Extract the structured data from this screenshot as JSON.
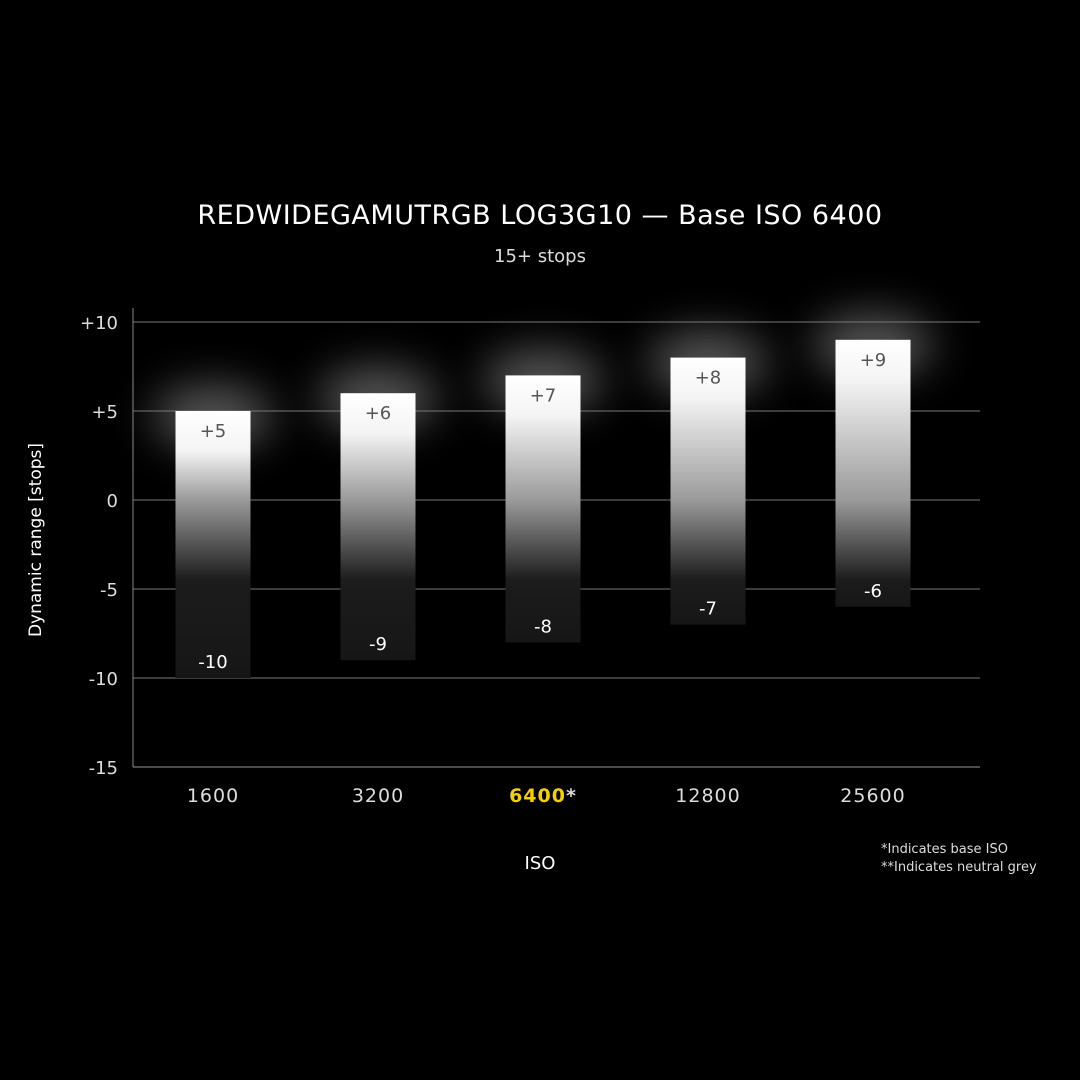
{
  "chart_data": {
    "type": "bar",
    "title": "REDWIDEGAMUTRGB LOG3G10 — Base ISO 6400",
    "subtitle": "15+ stops",
    "xlabel": "ISO",
    "ylabel": "Dynamic range [stops]",
    "ylim": [
      -15,
      10
    ],
    "yticks": [
      "+10",
      "+5",
      "0",
      "-5",
      "-10",
      "-15"
    ],
    "ytick_values": [
      10,
      5,
      0,
      -5,
      -10,
      -15
    ],
    "grid": true,
    "categories": [
      "1600",
      "3200",
      "6400*",
      "12800",
      "25600"
    ],
    "highlight_category": "6400*",
    "highlight_color": "#f5d000",
    "series": [
      {
        "name": "highlight",
        "values": [
          5,
          6,
          7,
          8,
          9
        ],
        "labels": [
          "+5",
          "+6",
          "+7",
          "+8",
          "+9"
        ]
      },
      {
        "name": "shadow",
        "values": [
          -10,
          -9,
          -8,
          -7,
          -6
        ],
        "labels": [
          "-10",
          "-9",
          "-8",
          "-7",
          "-6"
        ]
      }
    ],
    "notes": [
      "*Indicates base ISO",
      "**Indicates neutral grey"
    ]
  }
}
